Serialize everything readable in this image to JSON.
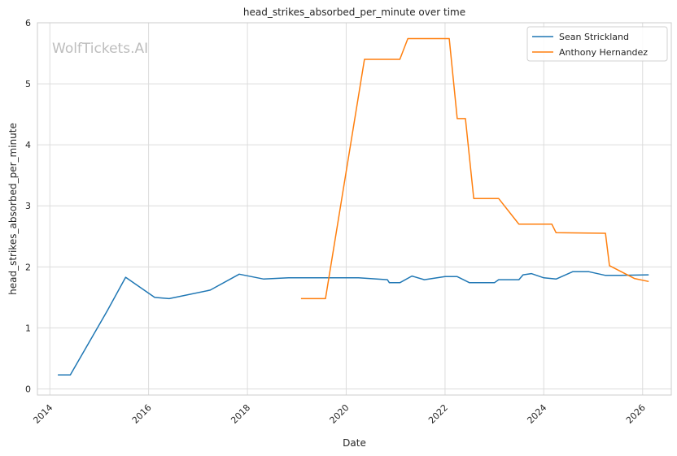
{
  "watermark": "WolfTickets.AI",
  "chart_data": {
    "type": "line",
    "title": "head_strikes_absorbed_per_minute over time",
    "xlabel": "Date",
    "ylabel": "head_strikes_absorbed_per_minute",
    "xlim": [
      "2013-10-01",
      "2026-08-01"
    ],
    "ylim": [
      -0.1,
      6.0
    ],
    "x_ticks": [
      "2014",
      "2016",
      "2018",
      "2020",
      "2022",
      "2024",
      "2026"
    ],
    "y_ticks": [
      "0",
      "1",
      "2",
      "3",
      "4",
      "5",
      "6"
    ],
    "grid": true,
    "legend_position": "top-right",
    "series": [
      {
        "name": "Sean Strickland",
        "color": "#1f77b4",
        "points": [
          [
            "2014-03-01",
            0.23
          ],
          [
            "2014-06-01",
            0.23
          ],
          [
            "2015-03-01",
            1.28
          ],
          [
            "2015-07-15",
            1.83
          ],
          [
            "2016-02-15",
            1.5
          ],
          [
            "2016-06-01",
            1.48
          ],
          [
            "2017-04-01",
            1.62
          ],
          [
            "2017-11-01",
            1.88
          ],
          [
            "2018-05-01",
            1.8
          ],
          [
            "2018-11-01",
            1.82
          ],
          [
            "2020-04-01",
            1.82
          ],
          [
            "2020-11-01",
            1.79
          ],
          [
            "2020-11-15",
            1.74
          ],
          [
            "2021-02-01",
            1.74
          ],
          [
            "2021-05-01",
            1.85
          ],
          [
            "2021-08-01",
            1.79
          ],
          [
            "2022-01-01",
            1.84
          ],
          [
            "2022-04-01",
            1.84
          ],
          [
            "2022-07-01",
            1.74
          ],
          [
            "2023-01-01",
            1.74
          ],
          [
            "2023-02-01",
            1.79
          ],
          [
            "2023-07-01",
            1.79
          ],
          [
            "2023-08-01",
            1.87
          ],
          [
            "2023-10-01",
            1.89
          ],
          [
            "2024-01-01",
            1.82
          ],
          [
            "2024-04-01",
            1.8
          ],
          [
            "2024-08-01",
            1.92
          ],
          [
            "2024-12-01",
            1.92
          ],
          [
            "2025-04-01",
            1.86
          ],
          [
            "2025-07-01",
            1.86
          ],
          [
            "2026-02-15",
            1.87
          ]
        ]
      },
      {
        "name": "Anthony Hernandez",
        "color": "#ff7f0e",
        "points": [
          [
            "2019-02-01",
            1.48
          ],
          [
            "2019-08-01",
            1.48
          ],
          [
            "2020-05-15",
            5.4
          ],
          [
            "2021-02-01",
            5.4
          ],
          [
            "2021-04-01",
            5.74
          ],
          [
            "2022-02-01",
            5.74
          ],
          [
            "2022-04-01",
            4.43
          ],
          [
            "2022-06-01",
            4.43
          ],
          [
            "2022-08-01",
            3.12
          ],
          [
            "2023-02-01",
            3.12
          ],
          [
            "2023-07-01",
            2.7
          ],
          [
            "2024-03-01",
            2.7
          ],
          [
            "2024-04-01",
            2.56
          ],
          [
            "2025-04-01",
            2.55
          ],
          [
            "2025-05-01",
            2.02
          ],
          [
            "2025-11-01",
            1.81
          ],
          [
            "2026-02-15",
            1.76
          ]
        ]
      }
    ]
  }
}
